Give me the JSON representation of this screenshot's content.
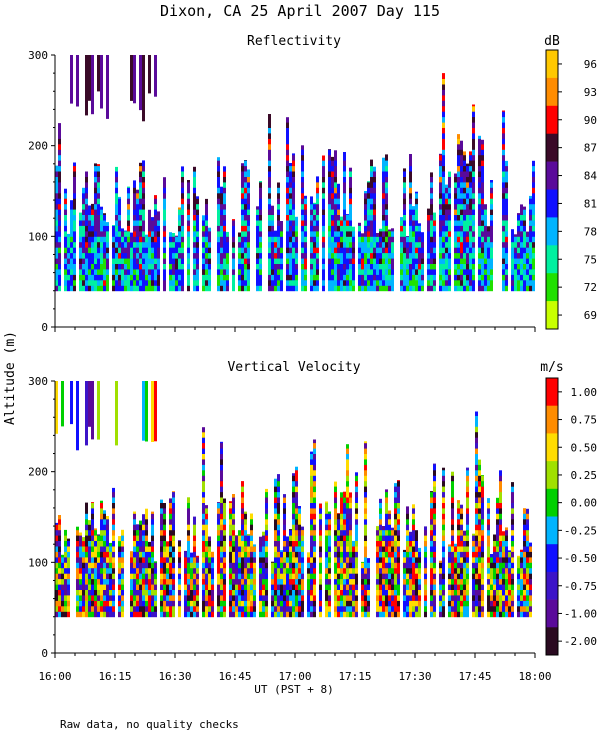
{
  "figure": {
    "title": "Dixon, CA 25 April 2007  Day 115",
    "shared_ylabel": "Altitude (m)",
    "xlabel": "UT  (PST + 8)",
    "footnote": "Raw data, no quality checks"
  },
  "chart_data": [
    {
      "type": "heatmap",
      "title": "Reflectivity",
      "x_ticks": [
        "16:00",
        "16:15",
        "16:30",
        "16:45",
        "17:00",
        "17:15",
        "17:30",
        "17:45",
        "18:00"
      ],
      "x_range": [
        "16:00",
        "18:00"
      ],
      "y_ticks": [
        0,
        100,
        200,
        300
      ],
      "ylim": [
        0,
        300
      ],
      "colorbar": {
        "unit": "dB",
        "labels": [
          "96",
          "93",
          "90",
          "87",
          "84",
          "81",
          "78",
          "75",
          "72",
          "69"
        ],
        "colors": [
          "#ffc800",
          "#ff8c00",
          "#ff0000",
          "#3a0a28",
          "#5a0a9a",
          "#1010ff",
          "#00b4ff",
          "#00f0a0",
          "#20e000",
          "#c8ff00"
        ]
      },
      "data_layer": {
        "base_altitude_m": 40,
        "typical_top_m": [
          100,
          180
        ],
        "max_echo_top_m": 280,
        "upper_echo_window": [
          "16:00",
          "16:25"
        ],
        "palette_order_low_to_high": [
          "#c8ff00",
          "#20e000",
          "#00f0a0",
          "#00b4ff",
          "#1010ff",
          "#5a0a9a",
          "#3a0a28",
          "#ff0000",
          "#ff8c00",
          "#ffc800"
        ]
      }
    },
    {
      "type": "heatmap",
      "title": "Vertical Velocity",
      "x_ticks": [
        "16:00",
        "16:15",
        "16:30",
        "16:45",
        "17:00",
        "17:15",
        "17:30",
        "17:45",
        "18:00"
      ],
      "x_range": [
        "16:00",
        "18:00"
      ],
      "y_ticks": [
        0,
        100,
        200,
        300
      ],
      "ylim": [
        0,
        300
      ],
      "colorbar": {
        "unit": "m/s",
        "labels": [
          "1.00",
          "0.75",
          "0.50",
          "0.25",
          "0.00",
          "-0.25",
          "-0.50",
          "-0.75",
          "-1.00",
          "-2.00"
        ],
        "colors": [
          "#ff0000",
          "#ff8c00",
          "#ffdc00",
          "#a0e000",
          "#00d000",
          "#00b4ff",
          "#1010ff",
          "#3c14c8",
          "#5a0a9a",
          "#2a0a20"
        ]
      },
      "data_layer": {
        "base_altitude_m": 40,
        "typical_top_m": [
          100,
          180
        ],
        "max_echo_top_m": 280,
        "upper_echo_window": [
          "16:00",
          "16:25"
        ],
        "palette_order_low_to_high": [
          "#2a0a20",
          "#5a0a9a",
          "#3c14c8",
          "#1010ff",
          "#00b4ff",
          "#00d000",
          "#a0e000",
          "#ffdc00",
          "#ff8c00",
          "#ff0000"
        ]
      }
    }
  ]
}
